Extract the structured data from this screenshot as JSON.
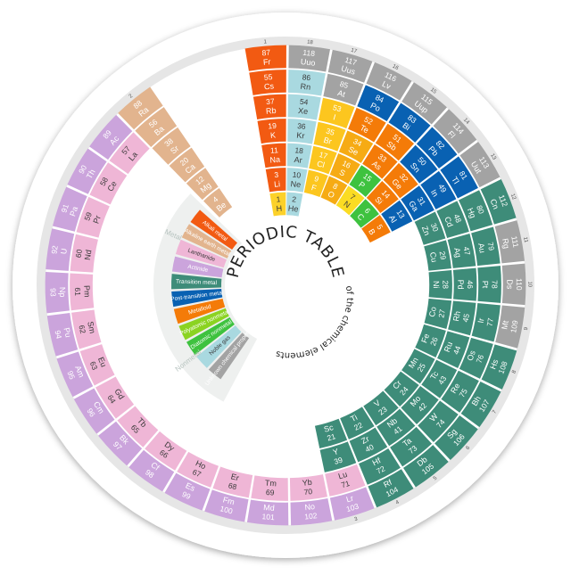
{
  "title": "PERIODIC TABLE",
  "subtitle": "of the chemical elements",
  "colors": {
    "alkali": "#f25a12",
    "alkaline": "#e2b48e",
    "transition": "#3e8c79",
    "post_transition": "#0961b2",
    "metalloid": "#f47b08",
    "polyatomic": "#8bd322",
    "diatomic": "#3ec23f",
    "noble": "#a9d9e0",
    "lanthanide": "#efb6d6",
    "actinide": "#cba4dc",
    "unknown": "#a3a3a3",
    "hydrogen": "#fcd12a",
    "halogen": "#fcc61f",
    "chalcogen": "#f6ab14",
    "pnictogen": "#fbdc23",
    "ring_border": "#e6e6e6"
  },
  "legend": {
    "metal_label": "Metal",
    "nonmetal_label": "Nonmetal",
    "items": [
      {
        "label": "Alkali metal",
        "color": "#f25a12"
      },
      {
        "label": "Alkaline earth metal",
        "color": "#e2b48e"
      },
      {
        "label": "Lanthanide",
        "color": "#efb6d6"
      },
      {
        "label": "Actinide",
        "color": "#cba4dc"
      },
      {
        "label": "Transition metal",
        "color": "#3e8c79"
      },
      {
        "label": "Post-transition metal",
        "color": "#0961b2"
      },
      {
        "label": "Metalloid",
        "color": "#f47b08"
      },
      {
        "label": "Polyatomic nonmetal",
        "color": "#8bd322"
      },
      {
        "label": "Diatomic nonmetal",
        "color": "#3ec23f"
      },
      {
        "label": "Noble gas",
        "color": "#a9d9e0"
      },
      {
        "label": "Unknown chemical properties",
        "color": "#a3a3a3"
      }
    ]
  },
  "groups": [
    {
      "label": "1",
      "elements": [
        {
          "n": "1",
          "s": "H",
          "c": "#fcd12a"
        },
        {
          "n": "3",
          "s": "Li",
          "c": "#f25a12"
        },
        {
          "n": "11",
          "s": "Na",
          "c": "#f25a12"
        },
        {
          "n": "19",
          "s": "K",
          "c": "#f25a12"
        },
        {
          "n": "37",
          "s": "Rb",
          "c": "#f25a12"
        },
        {
          "n": "55",
          "s": "Cs",
          "c": "#f25a12"
        },
        {
          "n": "87",
          "s": "Fr",
          "c": "#f25a12"
        }
      ]
    },
    {
      "label": "18",
      "elements": [
        {
          "n": "2",
          "s": "He",
          "c": "#a9d9e0"
        },
        {
          "n": "10",
          "s": "Ne",
          "c": "#a9d9e0"
        },
        {
          "n": "18",
          "s": "Ar",
          "c": "#a9d9e0"
        },
        {
          "n": "36",
          "s": "Kr",
          "c": "#a9d9e0"
        },
        {
          "n": "54",
          "s": "Xe",
          "c": "#a9d9e0"
        },
        {
          "n": "86",
          "s": "Rn",
          "c": "#a9d9e0"
        },
        {
          "n": "118",
          "s": "Uuo",
          "c": "#a3a3a3"
        }
      ]
    },
    {
      "label": "17",
      "elements": [
        {
          "n": "9",
          "s": "F",
          "c": "#fcc61f"
        },
        {
          "n": "17",
          "s": "Cl",
          "c": "#fcc61f"
        },
        {
          "n": "35",
          "s": "Br",
          "c": "#fcc61f"
        },
        {
          "n": "53",
          "s": "I",
          "c": "#fcc61f"
        },
        {
          "n": "85",
          "s": "At",
          "c": "#a3a3a3"
        },
        {
          "n": "117",
          "s": "Uus",
          "c": "#a3a3a3"
        }
      ]
    },
    {
      "label": "16",
      "elements": [
        {
          "n": "8",
          "s": "O",
          "c": "#f6ab14"
        },
        {
          "n": "16",
          "s": "S",
          "c": "#f6ab14"
        },
        {
          "n": "34",
          "s": "Se",
          "c": "#f6ab14"
        },
        {
          "n": "52",
          "s": "Te",
          "c": "#f47b08"
        },
        {
          "n": "84",
          "s": "Po",
          "c": "#0961b2"
        },
        {
          "n": "116",
          "s": "Lv",
          "c": "#a3a3a3"
        }
      ]
    },
    {
      "label": "15",
      "elements": [
        {
          "n": "7",
          "s": "N",
          "c": "#fbdc23"
        },
        {
          "n": "15",
          "s": "P",
          "c": "#3ec23f"
        },
        {
          "n": "33",
          "s": "As",
          "c": "#f47b08"
        },
        {
          "n": "51",
          "s": "Sb",
          "c": "#f47b08"
        },
        {
          "n": "83",
          "s": "Bi",
          "c": "#0961b2"
        },
        {
          "n": "115",
          "s": "Uup",
          "c": "#a3a3a3"
        }
      ]
    },
    {
      "label": "14",
      "elements": [
        {
          "n": "6",
          "s": "C",
          "c": "#3ec23f"
        },
        {
          "n": "14",
          "s": "Si",
          "c": "#f47b08"
        },
        {
          "n": "32",
          "s": "Ge",
          "c": "#f47b08"
        },
        {
          "n": "50",
          "s": "Sn",
          "c": "#0961b2"
        },
        {
          "n": "82",
          "s": "Pb",
          "c": "#0961b2"
        },
        {
          "n": "114",
          "s": "Fl",
          "c": "#a3a3a3"
        }
      ]
    },
    {
      "label": "13",
      "elements": [
        {
          "n": "5",
          "s": "B",
          "c": "#f47b08"
        },
        {
          "n": "13",
          "s": "Al",
          "c": "#0961b2"
        },
        {
          "n": "31",
          "s": "Ga",
          "c": "#0961b2"
        },
        {
          "n": "49",
          "s": "In",
          "c": "#0961b2"
        },
        {
          "n": "81",
          "s": "Tl",
          "c": "#0961b2"
        },
        {
          "n": "113",
          "s": "Uut",
          "c": "#a3a3a3"
        }
      ]
    },
    {
      "label": "12",
      "elements": [
        {
          "n": "30",
          "s": "Zn",
          "c": "#3e8c79"
        },
        {
          "n": "48",
          "s": "Cd",
          "c": "#3e8c79"
        },
        {
          "n": "80",
          "s": "Hg",
          "c": "#3e8c79"
        },
        {
          "n": "112",
          "s": "Cn",
          "c": "#3e8c79"
        }
      ]
    },
    {
      "label": "11",
      "elements": [
        {
          "n": "29",
          "s": "Cu",
          "c": "#3e8c79"
        },
        {
          "n": "47",
          "s": "Ag",
          "c": "#3e8c79"
        },
        {
          "n": "79",
          "s": "Au",
          "c": "#3e8c79"
        },
        {
          "n": "111",
          "s": "Rg",
          "c": "#a3a3a3"
        }
      ]
    },
    {
      "label": "10",
      "elements": [
        {
          "n": "28",
          "s": "Ni",
          "c": "#3e8c79"
        },
        {
          "n": "46",
          "s": "Pd",
          "c": "#3e8c79"
        },
        {
          "n": "78",
          "s": "Pt",
          "c": "#3e8c79"
        },
        {
          "n": "110",
          "s": "Ds",
          "c": "#a3a3a3"
        }
      ]
    },
    {
      "label": "9",
      "elements": [
        {
          "n": "27",
          "s": "Co",
          "c": "#3e8c79"
        },
        {
          "n": "45",
          "s": "Rh",
          "c": "#3e8c79"
        },
        {
          "n": "77",
          "s": "Ir",
          "c": "#3e8c79"
        },
        {
          "n": "109",
          "s": "Mt",
          "c": "#a3a3a3"
        }
      ]
    },
    {
      "label": "8",
      "elements": [
        {
          "n": "26",
          "s": "Fe",
          "c": "#3e8c79"
        },
        {
          "n": "44",
          "s": "Ru",
          "c": "#3e8c79"
        },
        {
          "n": "76",
          "s": "Os",
          "c": "#3e8c79"
        },
        {
          "n": "108",
          "s": "Hs",
          "c": "#3e8c79"
        }
      ]
    },
    {
      "label": "7",
      "elements": [
        {
          "n": "25",
          "s": "Mn",
          "c": "#3e8c79"
        },
        {
          "n": "43",
          "s": "Tc",
          "c": "#3e8c79"
        },
        {
          "n": "75",
          "s": "Re",
          "c": "#3e8c79"
        },
        {
          "n": "107",
          "s": "Bh",
          "c": "#3e8c79"
        }
      ]
    },
    {
      "label": "6",
      "elements": [
        {
          "n": "24",
          "s": "Cr",
          "c": "#3e8c79"
        },
        {
          "n": "42",
          "s": "Mo",
          "c": "#3e8c79"
        },
        {
          "n": "74",
          "s": "W",
          "c": "#3e8c79"
        },
        {
          "n": "106",
          "s": "Sg",
          "c": "#3e8c79"
        }
      ]
    },
    {
      "label": "5",
      "elements": [
        {
          "n": "23",
          "s": "V",
          "c": "#3e8c79"
        },
        {
          "n": "41",
          "s": "Nb",
          "c": "#3e8c79"
        },
        {
          "n": "73",
          "s": "Ta",
          "c": "#3e8c79"
        },
        {
          "n": "105",
          "s": "Db",
          "c": "#3e8c79"
        }
      ]
    },
    {
      "label": "4",
      "elements": [
        {
          "n": "22",
          "s": "Ti",
          "c": "#3e8c79"
        },
        {
          "n": "40",
          "s": "Zr",
          "c": "#3e8c79"
        },
        {
          "n": "72",
          "s": "Hf",
          "c": "#3e8c79"
        },
        {
          "n": "104",
          "s": "Rf",
          "c": "#3e8c79"
        }
      ]
    },
    {
      "label": "3",
      "elements": [
        {
          "n": "21",
          "s": "Sc",
          "c": "#3e8c79"
        },
        {
          "n": "39",
          "s": "Y",
          "c": "#3e8c79"
        },
        {
          "n": "71",
          "s": "Lu",
          "c": "#efb6d6"
        },
        {
          "n": "103",
          "s": "Lr",
          "c": "#cba4dc"
        }
      ]
    },
    {
      "label": "",
      "elements": [
        {
          "n": "70",
          "s": "Yb",
          "c": "#efb6d6"
        },
        {
          "n": "102",
          "s": "No",
          "c": "#cba4dc"
        }
      ]
    },
    {
      "label": "",
      "elements": [
        {
          "n": "69",
          "s": "Tm",
          "c": "#efb6d6"
        },
        {
          "n": "101",
          "s": "Md",
          "c": "#cba4dc"
        }
      ]
    },
    {
      "label": "",
      "elements": [
        {
          "n": "68",
          "s": "Er",
          "c": "#efb6d6"
        },
        {
          "n": "100",
          "s": "Fm",
          "c": "#cba4dc"
        }
      ]
    },
    {
      "label": "",
      "elements": [
        {
          "n": "67",
          "s": "Ho",
          "c": "#efb6d6"
        },
        {
          "n": "99",
          "s": "Es",
          "c": "#cba4dc"
        }
      ]
    },
    {
      "label": "",
      "elements": [
        {
          "n": "66",
          "s": "Dy",
          "c": "#efb6d6"
        },
        {
          "n": "98",
          "s": "Cf",
          "c": "#cba4dc"
        }
      ]
    },
    {
      "label": "",
      "elements": [
        {
          "n": "65",
          "s": "Tb",
          "c": "#efb6d6"
        },
        {
          "n": "97",
          "s": "Bk",
          "c": "#cba4dc"
        }
      ]
    },
    {
      "label": "",
      "elements": [
        {
          "n": "64",
          "s": "Gd",
          "c": "#efb6d6"
        },
        {
          "n": "96",
          "s": "Cm",
          "c": "#cba4dc"
        }
      ]
    },
    {
      "label": "",
      "elements": [
        {
          "n": "63",
          "s": "Eu",
          "c": "#efb6d6"
        },
        {
          "n": "95",
          "s": "Am",
          "c": "#cba4dc"
        }
      ]
    },
    {
      "label": "",
      "elements": [
        {
          "n": "62",
          "s": "Sm",
          "c": "#efb6d6"
        },
        {
          "n": "94",
          "s": "Pu",
          "c": "#cba4dc"
        }
      ]
    },
    {
      "label": "",
      "elements": [
        {
          "n": "61",
          "s": "Pm",
          "c": "#efb6d6"
        },
        {
          "n": "93",
          "s": "Np",
          "c": "#cba4dc"
        }
      ]
    },
    {
      "label": "",
      "elements": [
        {
          "n": "60",
          "s": "Nd",
          "c": "#efb6d6"
        },
        {
          "n": "92",
          "s": "U",
          "c": "#cba4dc"
        }
      ]
    },
    {
      "label": "",
      "elements": [
        {
          "n": "59",
          "s": "Pr",
          "c": "#efb6d6"
        },
        {
          "n": "91",
          "s": "Pa",
          "c": "#cba4dc"
        }
      ]
    },
    {
      "label": "",
      "elements": [
        {
          "n": "58",
          "s": "Ce",
          "c": "#efb6d6"
        },
        {
          "n": "90",
          "s": "Th",
          "c": "#cba4dc"
        }
      ]
    },
    {
      "label": "",
      "elements": [
        {
          "n": "57",
          "s": "La",
          "c": "#efb6d6"
        },
        {
          "n": "89",
          "s": "Ac",
          "c": "#cba4dc"
        }
      ]
    },
    {
      "label": "2",
      "elements": [
        {
          "n": "4",
          "s": "Be",
          "c": "#e2b48e"
        },
        {
          "n": "12",
          "s": "Mg",
          "c": "#e2b48e"
        },
        {
          "n": "20",
          "s": "Ca",
          "c": "#e2b48e"
        },
        {
          "n": "38",
          "s": "Sr",
          "c": "#e2b48e"
        },
        {
          "n": "56",
          "s": "Ba",
          "c": "#e2b48e"
        },
        {
          "n": "88",
          "s": "Ra",
          "c": "#e2b48e"
        }
      ]
    }
  ]
}
